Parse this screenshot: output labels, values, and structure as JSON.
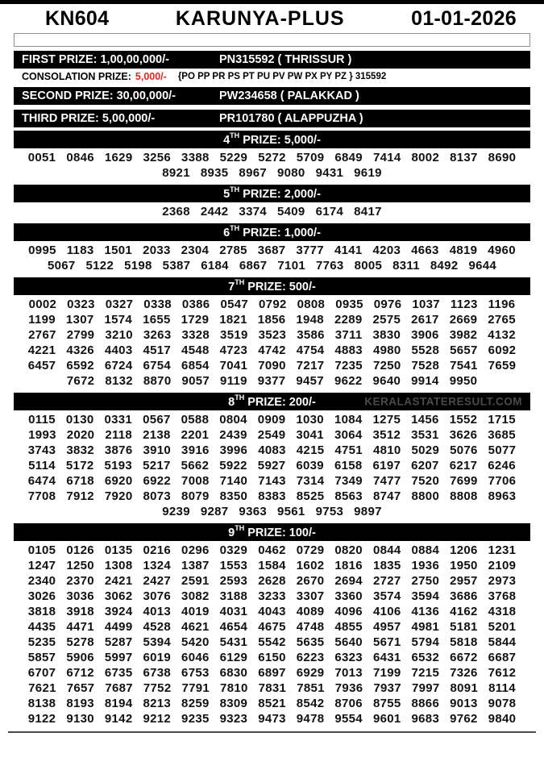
{
  "header": {
    "draw_no": "KN604",
    "title": "KARUNYA-PLUS",
    "date": "01-01-2026"
  },
  "first_prize": {
    "label": "FIRST PRIZE: 1,00,00,000/-",
    "winner": "PN315592 ( THRISSUR )"
  },
  "consolation": {
    "label": "CONSOLATION PRIZE:",
    "amount": "5,000/-",
    "series": "{PO PP PR PS PT PU PV PW PX PY PZ } 315592"
  },
  "second_prize": {
    "label": "SECOND PRIZE: 30,00,000/-",
    "winner": "PW234658 ( PALAKKAD )"
  },
  "third_prize": {
    "label": "THIRD PRIZE: 5,00,000/-",
    "winner": "PR101780 ( ALAPPUZHA )"
  },
  "watermark_color": "#4a4a4a",
  "accent_red": "#e8251f",
  "sections": [
    {
      "ordinal": "4",
      "suffix": "TH",
      "rest": " PRIZE: 5,000/-",
      "rows": [
        [
          "0051",
          "0846",
          "1629",
          "3256",
          "3388",
          "5229",
          "5272",
          "5709",
          "6849",
          "7414",
          "8002",
          "8137",
          "8690"
        ],
        [
          "8921",
          "8935",
          "8967",
          "9080",
          "9431",
          "9619"
        ]
      ]
    },
    {
      "ordinal": "5",
      "suffix": "TH",
      "rest": " PRIZE: 2,000/-",
      "rows": [
        [
          "2368",
          "2442",
          "3374",
          "5409",
          "6174",
          "8417"
        ]
      ]
    },
    {
      "ordinal": "6",
      "suffix": "TH",
      "rest": " PRIZE: 1,000/-",
      "rows": [
        [
          "0995",
          "1183",
          "1501",
          "2033",
          "2304",
          "2785",
          "3687",
          "3777",
          "4141",
          "4203",
          "4663",
          "4819",
          "4960"
        ],
        [
          "5067",
          "5122",
          "5198",
          "5387",
          "6184",
          "6867",
          "7101",
          "7763",
          "8005",
          "8311",
          "8492",
          "9644"
        ]
      ]
    },
    {
      "ordinal": "7",
      "suffix": "TH",
      "rest": " PRIZE: 500/-",
      "rows": [
        [
          "0002",
          "0323",
          "0327",
          "0338",
          "0386",
          "0547",
          "0792",
          "0808",
          "0935",
          "0976",
          "1037",
          "1123",
          "1196"
        ],
        [
          "1199",
          "1307",
          "1574",
          "1655",
          "1729",
          "1821",
          "1856",
          "1948",
          "2289",
          "2575",
          "2617",
          "2669",
          "2765"
        ],
        [
          "2767",
          "2799",
          "3210",
          "3263",
          "3328",
          "3519",
          "3523",
          "3586",
          "3711",
          "3830",
          "3906",
          "3982",
          "4132"
        ],
        [
          "4221",
          "4326",
          "4403",
          "4517",
          "4548",
          "4723",
          "4742",
          "4754",
          "4883",
          "4980",
          "5528",
          "5657",
          "6092"
        ],
        [
          "6457",
          "6592",
          "6724",
          "6754",
          "6854",
          "7041",
          "7090",
          "7217",
          "7235",
          "7250",
          "7528",
          "7541",
          "7659"
        ],
        [
          "7672",
          "8132",
          "8870",
          "9057",
          "9119",
          "9377",
          "9457",
          "9622",
          "9640",
          "9914",
          "9950"
        ]
      ]
    },
    {
      "ordinal": "8",
      "suffix": "TH",
      "rest": " PRIZE: 200/-",
      "watermark": "KERALASTATERESULT.COM",
      "rows": [
        [
          "0115",
          "0130",
          "0331",
          "0567",
          "0588",
          "0804",
          "0909",
          "1030",
          "1084",
          "1275",
          "1456",
          "1552",
          "1715"
        ],
        [
          "1993",
          "2020",
          "2118",
          "2138",
          "2201",
          "2439",
          "2549",
          "3041",
          "3064",
          "3512",
          "3531",
          "3626",
          "3685"
        ],
        [
          "3743",
          "3832",
          "3876",
          "3910",
          "3916",
          "3996",
          "4083",
          "4215",
          "4751",
          "4810",
          "5029",
          "5076",
          "5077"
        ],
        [
          "5114",
          "5172",
          "5193",
          "5217",
          "5662",
          "5922",
          "5927",
          "6039",
          "6158",
          "6197",
          "6207",
          "6217",
          "6246"
        ],
        [
          "6474",
          "6718",
          "6920",
          "6922",
          "7008",
          "7140",
          "7143",
          "7314",
          "7349",
          "7477",
          "7520",
          "7699",
          "7706"
        ],
        [
          "7708",
          "7912",
          "7920",
          "8073",
          "8079",
          "8350",
          "8383",
          "8525",
          "8563",
          "8747",
          "8800",
          "8808",
          "8963"
        ],
        [
          "9239",
          "9287",
          "9363",
          "9561",
          "9753",
          "9897"
        ]
      ]
    },
    {
      "ordinal": "9",
      "suffix": "TH",
      "rest": " PRIZE: 100/-",
      "rows": [
        [
          "0105",
          "0126",
          "0135",
          "0216",
          "0296",
          "0329",
          "0462",
          "0729",
          "0820",
          "0844",
          "0884",
          "1206",
          "1231"
        ],
        [
          "1247",
          "1250",
          "1308",
          "1324",
          "1387",
          "1553",
          "1584",
          "1602",
          "1816",
          "1835",
          "1936",
          "1950",
          "2109"
        ],
        [
          "2340",
          "2370",
          "2421",
          "2427",
          "2591",
          "2593",
          "2628",
          "2670",
          "2694",
          "2727",
          "2750",
          "2957",
          "2973"
        ],
        [
          "3026",
          "3036",
          "3062",
          "3076",
          "3082",
          "3188",
          "3233",
          "3307",
          "3360",
          "3574",
          "3594",
          "3686",
          "3768"
        ],
        [
          "3818",
          "3918",
          "3924",
          "4013",
          "4019",
          "4031",
          "4043",
          "4089",
          "4096",
          "4106",
          "4136",
          "4162",
          "4318"
        ],
        [
          "4435",
          "4471",
          "4499",
          "4528",
          "4621",
          "4654",
          "4675",
          "4748",
          "4855",
          "4957",
          "4981",
          "5181",
          "5201"
        ],
        [
          "5235",
          "5278",
          "5287",
          "5394",
          "5420",
          "5431",
          "5542",
          "5635",
          "5640",
          "5671",
          "5794",
          "5818",
          "5844"
        ],
        [
          "5857",
          "5906",
          "5997",
          "6019",
          "6046",
          "6129",
          "6150",
          "6223",
          "6323",
          "6431",
          "6532",
          "6672",
          "6687"
        ],
        [
          "6707",
          "6712",
          "6735",
          "6738",
          "6753",
          "6830",
          "6897",
          "6929",
          "7013",
          "7199",
          "7215",
          "7326",
          "7612"
        ],
        [
          "7621",
          "7657",
          "7687",
          "7752",
          "7791",
          "7810",
          "7831",
          "7851",
          "7936",
          "7937",
          "7997",
          "8091",
          "8114"
        ],
        [
          "8138",
          "8193",
          "8194",
          "8213",
          "8259",
          "8309",
          "8521",
          "8542",
          "8706",
          "8755",
          "8866",
          "9013",
          "9078"
        ],
        [
          "9122",
          "9130",
          "9142",
          "9212",
          "9235",
          "9323",
          "9473",
          "9478",
          "9554",
          "9601",
          "9683",
          "9762",
          "9840"
        ]
      ]
    }
  ]
}
